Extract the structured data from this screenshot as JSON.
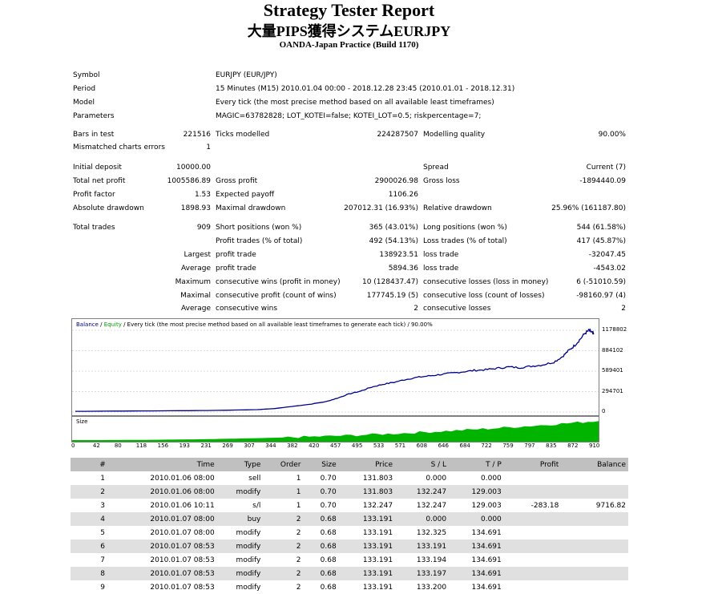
{
  "header": {
    "title": "Strategy Tester Report",
    "ea_name": "大量PIPS獲得システムEURJPY",
    "server": "OANDA-Japan Practice (Build 1170)"
  },
  "info": {
    "symbol_label": "Symbol",
    "symbol": "EURJPY (EUR/JPY)",
    "period_label": "Period",
    "period": "15 Minutes (M15) 2010.01.04 00:00 - 2018.12.28 23:45 (2010.01.01 - 2018.12.31)",
    "model_label": "Model",
    "model": "Every tick (the most precise method based on all available least timeframes)",
    "params_label": "Parameters",
    "params": "MAGIC=63782828; LOT_KOTEI=false; KOTEI_LOT=0.5; riskpercentage=7;"
  },
  "stats": {
    "bars_label": "Bars in test",
    "bars": "221516",
    "ticks_label": "Ticks modelled",
    "ticks": "224287507",
    "quality_label": "Modelling quality",
    "quality": "90.00%",
    "mismatch_label": "Mismatched charts errors",
    "mismatch": "1",
    "deposit_label": "Initial deposit",
    "deposit": "10000.00",
    "spread_label": "Spread",
    "spread": "Current (7)",
    "netprofit_label": "Total net profit",
    "netprofit": "1005586.89",
    "grossprofit_label": "Gross profit",
    "grossprofit": "2900026.98",
    "grossloss_label": "Gross loss",
    "grossloss": "-1894440.09",
    "pf_label": "Profit factor",
    "pf": "1.53",
    "payoff_label": "Expected payoff",
    "payoff": "1106.26",
    "absdd_label": "Absolute drawdown",
    "absdd": "1898.93",
    "maxdd_label": "Maximal drawdown",
    "maxdd": "207012.31 (16.93%)",
    "reldd_label": "Relative drawdown",
    "reldd": "25.96% (161187.80)",
    "trades_label": "Total trades",
    "trades": "909",
    "short_label": "Short positions (won %)",
    "short": "365 (43.01%)",
    "long_label": "Long positions (won %)",
    "long": "544 (61.58%)",
    "ptrades_label": "Profit trades (% of total)",
    "ptrades": "492 (54.13%)",
    "ltrades_label": "Loss trades (% of total)",
    "ltrades": "417 (45.87%)",
    "largest_label": "Largest",
    "lp_label": "profit trade",
    "lp": "138923.51",
    "ll_label": "loss trade",
    "ll": "-32047.45",
    "average_label": "Average",
    "ap_label": "profit trade",
    "ap": "5894.36",
    "al_label": "loss trade",
    "al": "-4543.02",
    "maximum_label": "Maximum",
    "mcw_label": "consecutive wins (profit in money)",
    "mcw": "10 (128437.47)",
    "mcl_label": "consecutive losses (loss in money)",
    "mcl": "6 (-51010.59)",
    "maximal_label": "Maximal",
    "mcp_label": "consecutive profit (count of wins)",
    "mcp": "177745.19 (5)",
    "mclc_label": "consecutive loss (count of losses)",
    "mclc": "-98160.97 (4)",
    "average2_label": "Average",
    "acw_label": "consecutive wins",
    "acw": "2",
    "acl_label": "consecutive losses",
    "acl": "2"
  },
  "chart_data": {
    "type": "line",
    "legend_balance": "Balance",
    "legend_sep": " / ",
    "legend_equity": "Equity",
    "legend_rest": " / Every tick (the most precise method based on all available least timeframes to generate each tick) / 90.00%",
    "size_label": "Size",
    "series_colors": {
      "balance": "#00008b",
      "equity": "#00a000",
      "size": "#00b400"
    },
    "ylim": [
      0,
      1178802
    ],
    "y_ticks": [
      "1178802",
      "884102",
      "589401",
      "294701",
      "0"
    ],
    "x_ticks": [
      "0",
      "42",
      "80",
      "118",
      "156",
      "193",
      "231",
      "269",
      "307",
      "344",
      "382",
      "420",
      "457",
      "495",
      "533",
      "571",
      "608",
      "646",
      "684",
      "722",
      "759",
      "797",
      "835",
      "872",
      "910"
    ],
    "xlim": [
      0,
      910
    ],
    "balance": [
      [
        0,
        10000
      ],
      [
        100,
        15000
      ],
      [
        200,
        20000
      ],
      [
        260,
        25000
      ],
      [
        320,
        35000
      ],
      [
        350,
        50000
      ],
      [
        380,
        80000
      ],
      [
        410,
        110000
      ],
      [
        440,
        150000
      ],
      [
        460,
        200000
      ],
      [
        480,
        260000
      ],
      [
        500,
        300000
      ],
      [
        520,
        360000
      ],
      [
        540,
        400000
      ],
      [
        560,
        430000
      ],
      [
        580,
        470000
      ],
      [
        600,
        500000
      ],
      [
        620,
        520000
      ],
      [
        640,
        540000
      ],
      [
        660,
        560000
      ],
      [
        680,
        580000
      ],
      [
        700,
        600000
      ],
      [
        720,
        610000
      ],
      [
        740,
        630000
      ],
      [
        760,
        650000
      ],
      [
        780,
        640000
      ],
      [
        800,
        660000
      ],
      [
        820,
        680000
      ],
      [
        840,
        720000
      ],
      [
        855,
        800000
      ],
      [
        865,
        880000
      ],
      [
        875,
        950000
      ],
      [
        885,
        1040000
      ],
      [
        895,
        1140000
      ],
      [
        902,
        1178000
      ],
      [
        906,
        1150000
      ],
      [
        910,
        1120000
      ]
    ]
  },
  "trades_table": {
    "headers": [
      "#",
      "Time",
      "Type",
      "Order",
      "Size",
      "Price",
      "S / L",
      "T / P",
      "Profit",
      "Balance"
    ],
    "rows": [
      [
        "1",
        "2010.01.06 08:00",
        "sell",
        "1",
        "0.70",
        "131.803",
        "0.000",
        "0.000",
        "",
        ""
      ],
      [
        "2",
        "2010.01.06 08:00",
        "modify",
        "1",
        "0.70",
        "131.803",
        "132.247",
        "129.003",
        "",
        ""
      ],
      [
        "3",
        "2010.01.06 10:11",
        "s/l",
        "1",
        "0.70",
        "132.247",
        "132.247",
        "129.003",
        "-283.18",
        "9716.82"
      ],
      [
        "4",
        "2010.01.07 08:00",
        "buy",
        "2",
        "0.68",
        "133.191",
        "0.000",
        "0.000",
        "",
        ""
      ],
      [
        "5",
        "2010.01.07 08:00",
        "modify",
        "2",
        "0.68",
        "133.191",
        "132.325",
        "134.691",
        "",
        ""
      ],
      [
        "6",
        "2010.01.07 08:53",
        "modify",
        "2",
        "0.68",
        "133.191",
        "133.191",
        "134.691",
        "",
        ""
      ],
      [
        "7",
        "2010.01.07 08:53",
        "modify",
        "2",
        "0.68",
        "133.191",
        "133.194",
        "134.691",
        "",
        ""
      ],
      [
        "8",
        "2010.01.07 08:53",
        "modify",
        "2",
        "0.68",
        "133.191",
        "133.197",
        "134.691",
        "",
        ""
      ],
      [
        "9",
        "2010.01.07 08:53",
        "modify",
        "2",
        "0.68",
        "133.191",
        "133.200",
        "134.691",
        "",
        ""
      ]
    ]
  }
}
